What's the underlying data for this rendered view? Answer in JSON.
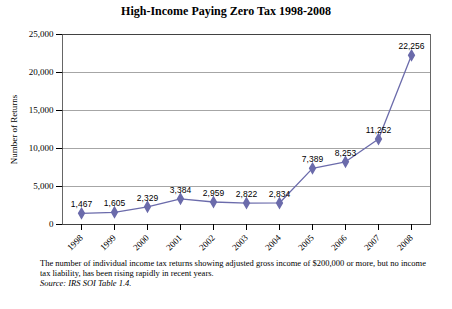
{
  "chart_data": {
    "type": "line",
    "title": "High-Income Paying Zero Tax 1998-2008",
    "y_label": "Number of Returns",
    "categories": [
      "1998",
      "1999",
      "2000",
      "2001",
      "2002",
      "2003",
      "2004",
      "2005",
      "2006",
      "2007",
      "2008"
    ],
    "values": [
      1467,
      1605,
      2329,
      3384,
      2959,
      2822,
      2834,
      7389,
      8253,
      11252,
      22256
    ],
    "value_labels": [
      "1,467",
      "1,605",
      "2,329",
      "3,384",
      "2,959",
      "2,822",
      "2,834",
      "7,389",
      "8,253",
      "11,252",
      "22,256"
    ],
    "data_labels": true,
    "color": "#6b6bab",
    "marker": "diamond",
    "ylim": [
      0,
      25000
    ],
    "yticks": [
      0,
      {
        "value": 5000,
        "label": "5,000"
      },
      {
        "value": 10000,
        "label": "10,000"
      },
      {
        "value": 15000,
        "label": "15,000"
      },
      {
        "value": 20000,
        "label": "20,000"
      },
      {
        "value": 25000,
        "label": "25,000"
      }
    ],
    "grid": true,
    "caption": "The number of individual income tax returns showing adjusted gross income of $200,000 or more, but no income tax liability, has been rising rapidly in recent years.",
    "source": "Source: IRS SOI Table 1.4."
  }
}
